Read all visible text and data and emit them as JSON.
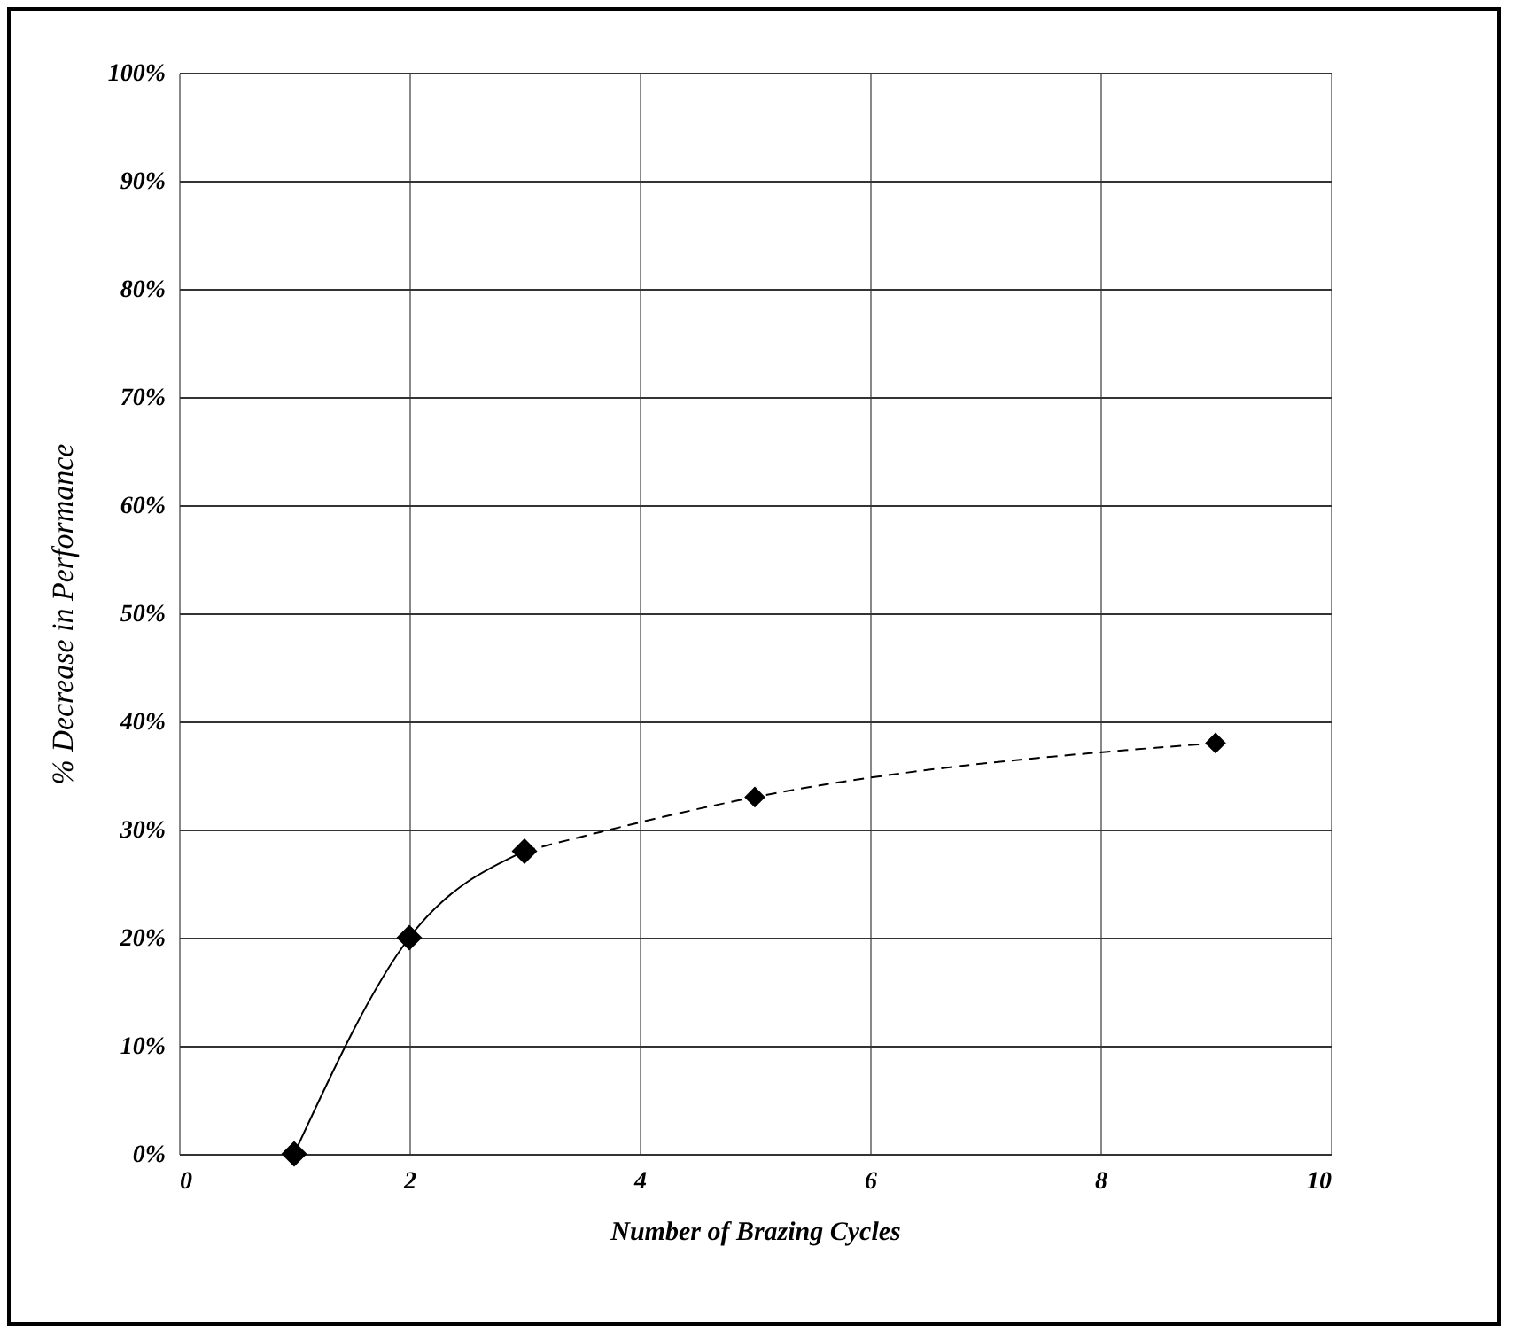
{
  "chart_data": {
    "type": "line",
    "xlabel": "Number of Brazing Cycles",
    "ylabel": "% Decrease in Performance",
    "xlim": [
      0,
      10
    ],
    "xticks": [
      0,
      2,
      4,
      6,
      8,
      10
    ],
    "ylim": [
      0,
      100
    ],
    "yticks": [
      {
        "value": 0,
        "label": "0%"
      },
      {
        "value": 10,
        "label": "10%"
      },
      {
        "value": 20,
        "label": "20%"
      },
      {
        "value": 30,
        "label": "30%"
      },
      {
        "value": 40,
        "label": "40%"
      },
      {
        "value": 50,
        "label": "50%"
      },
      {
        "value": 60,
        "label": "60%"
      },
      {
        "value": 70,
        "label": "70%"
      },
      {
        "value": 80,
        "label": "80%"
      },
      {
        "value": 90,
        "label": "90%"
      },
      {
        "value": 100,
        "label": "100%"
      }
    ],
    "grid": true,
    "marker": "diamond",
    "series": [
      {
        "color": "#000000",
        "x": [
          1,
          2,
          3
        ],
        "values": [
          0,
          20,
          28
        ],
        "line_style": "solid"
      },
      {
        "color": "#000000",
        "x": [
          3,
          5,
          9
        ],
        "values": [
          28,
          33,
          38
        ],
        "line_style": "dashed"
      }
    ]
  }
}
